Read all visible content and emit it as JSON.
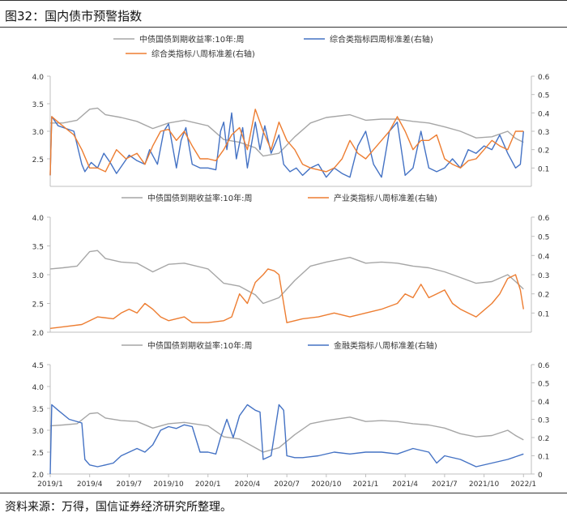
{
  "figure_title": "图32：国内债市预警指数",
  "source_note": "资料来源：万得，国信证券经济研究所整理。",
  "colors": {
    "yield": "#a6a6a6",
    "blue": "#4472c4",
    "orange": "#ed7d31",
    "axis": "#bfbfbf"
  },
  "chart_data": [
    {
      "type": "line",
      "legend": [
        {
          "name": "中债国债到期收益率:10年:周",
          "color": "#a6a6a6"
        },
        {
          "name": "综合类指标四周标准差(右轴)",
          "color": "#4472c4"
        },
        {
          "name": "综合类指标八周标准差(右轴)",
          "color": "#ed7d31"
        }
      ],
      "y_left": {
        "min": 2.0,
        "max": 4.0,
        "ticks": [
          "2.5",
          "3.0",
          "3.5",
          "4.0"
        ],
        "tick_values": [
          2.5,
          3.0,
          3.5,
          4.0
        ]
      },
      "y_right": {
        "min": 0.0,
        "max": 0.6,
        "ticks": [
          "0.1",
          "0.2",
          "0.3",
          "0.4",
          "0.5",
          "0.6"
        ],
        "tick_values": [
          0.1,
          0.2,
          0.3,
          0.4,
          0.5,
          0.6
        ]
      },
      "series": [
        {
          "name": "中债国债到期收益率:10年:周",
          "axis": "left",
          "color": "#a6a6a6",
          "x": [
            2019.0,
            2019.08,
            2019.17,
            2019.25,
            2019.3,
            2019.35,
            2019.45,
            2019.55,
            2019.65,
            2019.75,
            2019.85,
            2020.0,
            2020.1,
            2020.2,
            2020.3,
            2020.35,
            2020.45,
            2020.55,
            2020.65,
            2020.75,
            2020.9,
            2021.0,
            2021.1,
            2021.2,
            2021.3,
            2021.4,
            2021.5,
            2021.6,
            2021.7,
            2021.8,
            2021.9,
            2021.95,
            2022.0
          ],
          "y": [
            3.15,
            3.15,
            3.2,
            3.4,
            3.42,
            3.3,
            3.25,
            3.18,
            3.05,
            3.15,
            3.2,
            3.1,
            2.85,
            2.8,
            2.7,
            2.55,
            2.6,
            2.9,
            3.15,
            3.25,
            3.3,
            3.2,
            3.22,
            3.22,
            3.18,
            3.15,
            3.08,
            3.0,
            2.88,
            2.9,
            3.0,
            2.87,
            2.8
          ]
        },
        {
          "name": "综合类指标四周标准差(右轴)",
          "axis": "right",
          "color": "#4472c4",
          "x": [
            2019.0,
            2019.01,
            2019.05,
            2019.15,
            2019.2,
            2019.22,
            2019.26,
            2019.3,
            2019.34,
            2019.38,
            2019.42,
            2019.5,
            2019.55,
            2019.6,
            2019.63,
            2019.68,
            2019.72,
            2019.75,
            2019.8,
            2019.83,
            2019.86,
            2019.9,
            2019.95,
            2020.0,
            2020.05,
            2020.08,
            2020.1,
            2020.12,
            2020.15,
            2020.18,
            2020.22,
            2020.25,
            2020.3,
            2020.33,
            2020.36,
            2020.4,
            2020.45,
            2020.48,
            2020.52,
            2020.56,
            2020.6,
            2020.65,
            2020.7,
            2020.75,
            2020.8,
            2020.85,
            2020.9,
            2020.95,
            2021.0,
            2021.05,
            2021.1,
            2021.15,
            2021.2,
            2021.25,
            2021.3,
            2021.35,
            2021.4,
            2021.45,
            2021.5,
            2021.55,
            2021.6,
            2021.65,
            2021.7,
            2021.75,
            2021.8,
            2021.85,
            2021.9,
            2021.95,
            2021.98,
            2022.0
          ],
          "y": [
            0.06,
            0.38,
            0.33,
            0.3,
            0.12,
            0.08,
            0.13,
            0.1,
            0.18,
            0.13,
            0.07,
            0.17,
            0.14,
            0.12,
            0.2,
            0.12,
            0.3,
            0.34,
            0.1,
            0.25,
            0.32,
            0.12,
            0.1,
            0.1,
            0.09,
            0.3,
            0.35,
            0.2,
            0.4,
            0.15,
            0.32,
            0.1,
            0.35,
            0.2,
            0.33,
            0.18,
            0.28,
            0.12,
            0.08,
            0.1,
            0.06,
            0.1,
            0.12,
            0.05,
            0.1,
            0.07,
            0.05,
            0.22,
            0.3,
            0.12,
            0.05,
            0.3,
            0.35,
            0.06,
            0.1,
            0.3,
            0.1,
            0.08,
            0.1,
            0.15,
            0.1,
            0.2,
            0.18,
            0.22,
            0.2,
            0.28,
            0.18,
            0.1,
            0.12,
            0.3
          ]
        },
        {
          "name": "综合类指标八周标准差(右轴)",
          "axis": "right",
          "color": "#ed7d31",
          "x": [
            2019.0,
            2019.01,
            2019.05,
            2019.15,
            2019.2,
            2019.25,
            2019.3,
            2019.35,
            2019.42,
            2019.48,
            2019.55,
            2019.6,
            2019.65,
            2019.7,
            2019.75,
            2019.8,
            2019.85,
            2019.9,
            2019.95,
            2020.0,
            2020.05,
            2020.1,
            2020.15,
            2020.2,
            2020.25,
            2020.3,
            2020.35,
            2020.4,
            2020.45,
            2020.5,
            2020.55,
            2020.6,
            2020.65,
            2020.7,
            2020.75,
            2020.8,
            2020.85,
            2020.9,
            2020.95,
            2021.0,
            2021.05,
            2021.1,
            2021.15,
            2021.2,
            2021.25,
            2021.3,
            2021.35,
            2021.4,
            2021.45,
            2021.5,
            2021.55,
            2021.6,
            2021.65,
            2021.7,
            2021.75,
            2021.8,
            2021.85,
            2021.9,
            2021.95,
            2022.0
          ],
          "y": [
            0.06,
            0.38,
            0.35,
            0.28,
            0.2,
            0.1,
            0.1,
            0.08,
            0.2,
            0.15,
            0.18,
            0.12,
            0.22,
            0.3,
            0.31,
            0.25,
            0.3,
            0.22,
            0.15,
            0.15,
            0.14,
            0.2,
            0.28,
            0.32,
            0.2,
            0.42,
            0.3,
            0.2,
            0.35,
            0.25,
            0.2,
            0.12,
            0.1,
            0.09,
            0.08,
            0.1,
            0.15,
            0.25,
            0.18,
            0.15,
            0.2,
            0.25,
            0.3,
            0.38,
            0.3,
            0.2,
            0.25,
            0.25,
            0.28,
            0.15,
            0.12,
            0.1,
            0.14,
            0.15,
            0.2,
            0.25,
            0.22,
            0.2,
            0.3,
            0.3
          ]
        }
      ]
    },
    {
      "type": "line",
      "legend": [
        {
          "name": "中债国债到期收益率:10年:周",
          "color": "#a6a6a6"
        },
        {
          "name": "产业类指标八周标准差(右轴)",
          "color": "#ed7d31"
        }
      ],
      "y_left": {
        "min": 2.0,
        "max": 4.0,
        "ticks": [
          "2.0",
          "2.5",
          "3.0",
          "3.5",
          "4.0"
        ],
        "tick_values": [
          2.0,
          2.5,
          3.0,
          3.5,
          4.0
        ]
      },
      "y_right": {
        "min": 0.0,
        "max": 0.6,
        "ticks": [
          "0.1",
          "0.2",
          "0.3",
          "0.4",
          "0.5",
          "0.6"
        ],
        "tick_values": [
          0.1,
          0.2,
          0.3,
          0.4,
          0.5,
          0.6
        ]
      },
      "series": [
        {
          "name": "中债国债到期收益率:10年:周",
          "axis": "left",
          "color": "#a6a6a6",
          "x": [
            2019.0,
            2019.08,
            2019.17,
            2019.25,
            2019.3,
            2019.35,
            2019.45,
            2019.55,
            2019.65,
            2019.75,
            2019.85,
            2020.0,
            2020.1,
            2020.2,
            2020.3,
            2020.35,
            2020.45,
            2020.55,
            2020.65,
            2020.75,
            2020.9,
            2021.0,
            2021.1,
            2021.2,
            2021.3,
            2021.4,
            2021.5,
            2021.6,
            2021.7,
            2021.8,
            2021.9,
            2021.95,
            2022.0
          ],
          "y": [
            3.1,
            3.12,
            3.15,
            3.4,
            3.42,
            3.28,
            3.22,
            3.2,
            3.05,
            3.18,
            3.2,
            3.1,
            2.85,
            2.8,
            2.65,
            2.5,
            2.6,
            2.9,
            3.15,
            3.22,
            3.3,
            3.2,
            3.22,
            3.2,
            3.15,
            3.12,
            3.05,
            2.95,
            2.85,
            2.88,
            3.0,
            2.88,
            2.75
          ]
        },
        {
          "name": "产业类指标八周标准差(右轴)",
          "axis": "right",
          "color": "#ed7d31",
          "x": [
            2019.0,
            2019.1,
            2019.2,
            2019.3,
            2019.4,
            2019.45,
            2019.5,
            2019.55,
            2019.6,
            2019.65,
            2019.7,
            2019.75,
            2019.8,
            2019.85,
            2019.9,
            2019.95,
            2020.0,
            2020.1,
            2020.15,
            2020.2,
            2020.25,
            2020.3,
            2020.35,
            2020.38,
            2020.42,
            2020.45,
            2020.5,
            2020.55,
            2020.6,
            2020.7,
            2020.8,
            2020.9,
            2021.0,
            2021.1,
            2021.2,
            2021.25,
            2021.3,
            2021.35,
            2021.4,
            2021.45,
            2021.5,
            2021.55,
            2021.6,
            2021.7,
            2021.8,
            2021.85,
            2021.9,
            2021.95,
            2021.98,
            2022.0
          ],
          "y": [
            0.02,
            0.03,
            0.04,
            0.08,
            0.07,
            0.1,
            0.12,
            0.1,
            0.15,
            0.12,
            0.08,
            0.06,
            0.07,
            0.08,
            0.05,
            0.05,
            0.05,
            0.06,
            0.08,
            0.2,
            0.15,
            0.26,
            0.3,
            0.33,
            0.32,
            0.3,
            0.05,
            0.06,
            0.07,
            0.08,
            0.1,
            0.08,
            0.1,
            0.12,
            0.15,
            0.2,
            0.18,
            0.25,
            0.18,
            0.2,
            0.22,
            0.15,
            0.12,
            0.08,
            0.15,
            0.2,
            0.28,
            0.3,
            0.22,
            0.12
          ]
        }
      ]
    },
    {
      "type": "line",
      "legend": [
        {
          "name": "中债国债到期收益率:10年:周",
          "color": "#a6a6a6"
        },
        {
          "name": "金融类指标八周标准差(右轴)",
          "color": "#4472c4"
        }
      ],
      "y_left": {
        "min": 2.0,
        "max": 4.5,
        "ticks": [
          "2.0",
          "2.5",
          "3.0",
          "3.5",
          "4.0",
          "4.5"
        ],
        "tick_values": [
          2.0,
          2.5,
          3.0,
          3.5,
          4.0,
          4.5
        ]
      },
      "y_right": {
        "min": 0.0,
        "max": 0.6,
        "ticks": [
          "0",
          "0.1",
          "0.2",
          "0.3",
          "0.4",
          "0.5",
          "0.6"
        ],
        "tick_values": [
          0.0,
          0.1,
          0.2,
          0.3,
          0.4,
          0.5,
          0.6
        ]
      },
      "x_ticks": [
        "2019/1",
        "2019/4",
        "2019/7",
        "2019/10",
        "2020/1",
        "2020/4",
        "2020/7",
        "2020/10",
        "2021/1",
        "2021/4",
        "2021/7",
        "2021/10",
        "2022/1"
      ],
      "x_tick_values": [
        2019.0,
        2019.25,
        2019.5,
        2019.75,
        2020.0,
        2020.25,
        2020.5,
        2020.75,
        2021.0,
        2021.25,
        2021.5,
        2021.75,
        2022.0
      ],
      "series": [
        {
          "name": "中债国债到期收益率:10年:周",
          "axis": "left",
          "color": "#a6a6a6",
          "x": [
            2019.0,
            2019.08,
            2019.17,
            2019.25,
            2019.3,
            2019.35,
            2019.45,
            2019.55,
            2019.65,
            2019.75,
            2019.85,
            2020.0,
            2020.1,
            2020.2,
            2020.3,
            2020.35,
            2020.45,
            2020.55,
            2020.65,
            2020.75,
            2020.9,
            2021.0,
            2021.1,
            2021.2,
            2021.3,
            2021.4,
            2021.5,
            2021.6,
            2021.7,
            2021.8,
            2021.9,
            2021.95,
            2022.0
          ],
          "y": [
            3.1,
            3.12,
            3.15,
            3.38,
            3.4,
            3.28,
            3.22,
            3.2,
            3.05,
            3.15,
            3.18,
            3.1,
            2.85,
            2.8,
            2.6,
            2.5,
            2.6,
            2.9,
            3.15,
            3.22,
            3.3,
            3.2,
            3.22,
            3.2,
            3.15,
            3.12,
            3.05,
            2.92,
            2.85,
            2.88,
            3.0,
            2.88,
            2.78
          ]
        },
        {
          "name": "金融类指标八周标准差(右轴)",
          "axis": "right",
          "color": "#4472c4",
          "x": [
            2019.0,
            2019.01,
            2019.05,
            2019.12,
            2019.2,
            2019.22,
            2019.25,
            2019.3,
            2019.35,
            2019.4,
            2019.45,
            2019.5,
            2019.55,
            2019.6,
            2019.65,
            2019.7,
            2019.75,
            2019.8,
            2019.85,
            2019.9,
            2019.95,
            2020.0,
            2020.05,
            2020.08,
            2020.12,
            2020.16,
            2020.2,
            2020.25,
            2020.3,
            2020.33,
            2020.35,
            2020.4,
            2020.45,
            2020.48,
            2020.5,
            2020.55,
            2020.6,
            2020.7,
            2020.8,
            2020.9,
            2021.0,
            2021.1,
            2021.2,
            2021.3,
            2021.4,
            2021.45,
            2021.5,
            2021.6,
            2021.7,
            2021.8,
            2021.9,
            2022.0
          ],
          "y": [
            0.0,
            0.38,
            0.35,
            0.3,
            0.28,
            0.08,
            0.05,
            0.04,
            0.05,
            0.06,
            0.1,
            0.12,
            0.14,
            0.12,
            0.16,
            0.24,
            0.26,
            0.25,
            0.27,
            0.26,
            0.12,
            0.12,
            0.11,
            0.2,
            0.3,
            0.2,
            0.32,
            0.38,
            0.35,
            0.34,
            0.08,
            0.1,
            0.38,
            0.35,
            0.1,
            0.09,
            0.09,
            0.1,
            0.12,
            0.11,
            0.12,
            0.12,
            0.11,
            0.14,
            0.12,
            0.06,
            0.1,
            0.08,
            0.04,
            0.06,
            0.08,
            0.11
          ]
        }
      ]
    }
  ]
}
